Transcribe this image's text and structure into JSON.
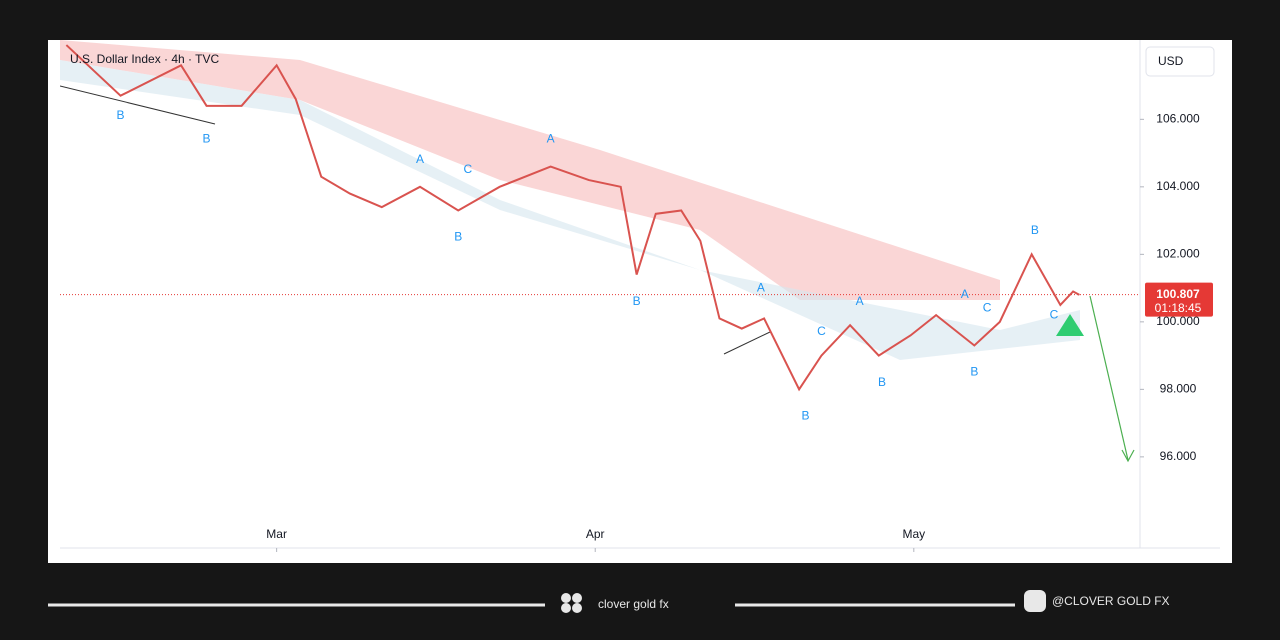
{
  "chart_data": {
    "type": "line",
    "title": "U.S. Dollar Index · 4h · TVC",
    "currency_button": "USD",
    "x": [
      2.34,
      2.51,
      2.7,
      2.78,
      2.89,
      3.0,
      3.06,
      3.14,
      3.23,
      3.33,
      3.45,
      3.57,
      3.7,
      3.86,
      3.98,
      4.08,
      4.13,
      4.19,
      4.27,
      4.33,
      4.39,
      4.46,
      4.53,
      4.64,
      4.71,
      4.8,
      4.89,
      4.99,
      5.07,
      5.19,
      5.27,
      5.37,
      5.46,
      5.5,
      5.52
    ],
    "series": [
      {
        "name": "DXY",
        "color": "#d9534f",
        "values": [
          108.2,
          106.7,
          107.6,
          106.4,
          106.4,
          107.6,
          106.6,
          104.3,
          103.8,
          103.4,
          104.0,
          103.3,
          104.0,
          104.6,
          104.2,
          104.0,
          101.4,
          103.2,
          103.3,
          102.4,
          100.1,
          99.8,
          100.1,
          98.0,
          99.0,
          99.9,
          99.0,
          99.6,
          100.2,
          99.3,
          100.0,
          102.0,
          100.5,
          100.9,
          100.8
        ]
      }
    ],
    "xlim": [
      2.32,
      5.71
    ],
    "xticks": [
      {
        "value": 3,
        "label": "Mar"
      },
      {
        "value": 4,
        "label": "Apr"
      },
      {
        "value": 5,
        "label": "May"
      }
    ],
    "ylim": [
      93.3,
      108.35
    ],
    "yticks": [
      {
        "value": 96,
        "label": "96.000"
      },
      {
        "value": 98,
        "label": "98.000"
      },
      {
        "value": 100,
        "label": "100.000"
      },
      {
        "value": 102,
        "label": "102.000"
      },
      {
        "value": 104,
        "label": "104.000"
      },
      {
        "value": 106,
        "label": "106.000"
      }
    ],
    "last_price": 100.807,
    "countdown": "01:18:45",
    "annotations": [
      {
        "text": "B",
        "x": 2.51,
        "y": 106.1
      },
      {
        "text": "B",
        "x": 2.78,
        "y": 105.4
      },
      {
        "text": "A",
        "x": 3.45,
        "y": 104.8
      },
      {
        "text": "C",
        "x": 3.6,
        "y": 104.5
      },
      {
        "text": "B",
        "x": 3.57,
        "y": 102.5
      },
      {
        "text": "A",
        "x": 3.86,
        "y": 105.4
      },
      {
        "text": "B",
        "x": 4.13,
        "y": 100.6
      },
      {
        "text": "A",
        "x": 4.52,
        "y": 101.0
      },
      {
        "text": "C",
        "x": 4.71,
        "y": 99.7
      },
      {
        "text": "B",
        "x": 4.66,
        "y": 97.2
      },
      {
        "text": "A",
        "x": 4.83,
        "y": 100.6
      },
      {
        "text": "B",
        "x": 4.9,
        "y": 98.2
      },
      {
        "text": "A",
        "x": 5.16,
        "y": 100.8
      },
      {
        "text": "B",
        "x": 5.19,
        "y": 98.5
      },
      {
        "text": "C",
        "x": 5.23,
        "y": 100.4
      },
      {
        "text": "B",
        "x": 5.38,
        "y": 102.7
      },
      {
        "text": "C",
        "x": 5.44,
        "y": 100.2
      }
    ]
  },
  "footer": {
    "brand": "clover gold fx",
    "handle": "@CLOVER GOLD FX"
  }
}
